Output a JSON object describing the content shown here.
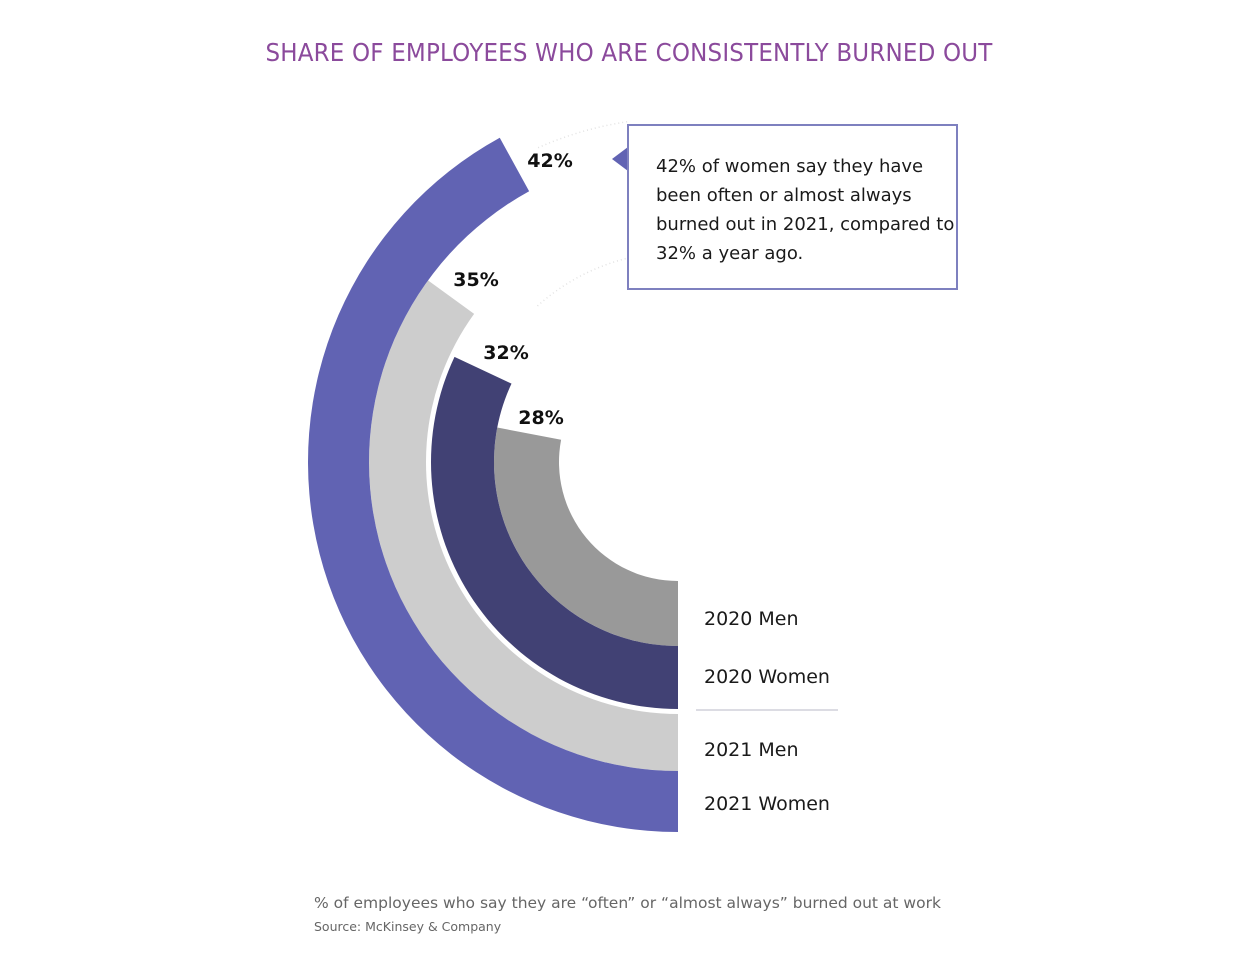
{
  "chart_data": {
    "type": "radial-bar",
    "title": "SHARE OF EMPLOYEES WHO ARE CONSISTENTLY BURNED OUT",
    "unit": "%",
    "max": 100,
    "series": [
      {
        "name": "2020 Men",
        "value": 28,
        "label": "28%",
        "color": "#999999"
      },
      {
        "name": "2020 Women",
        "value": 32,
        "label": "32%",
        "color": "#414174"
      },
      {
        "name": "2021 Men",
        "value": 35,
        "label": "35%",
        "color": "#CDCDCD"
      },
      {
        "name": "2021 Women",
        "value": 42,
        "label": "42%",
        "color": "#6163B3"
      }
    ],
    "legend": [
      "2020 Men",
      "2020 Women",
      "2021 Men",
      "2021 Women"
    ],
    "legend_placement": "right-bottom",
    "annotation": "42% of women say they have been often or almost always burned out in 2021, compared to 32% a year ago.",
    "footnote": "% of employees who say they are “often” or “almost always” burned out at work",
    "source": "Source: McKinsey & Company"
  },
  "colors": {
    "title": "#8B4A9C",
    "callout_border": "#7E80BF",
    "divider": "#D0D0DA"
  }
}
